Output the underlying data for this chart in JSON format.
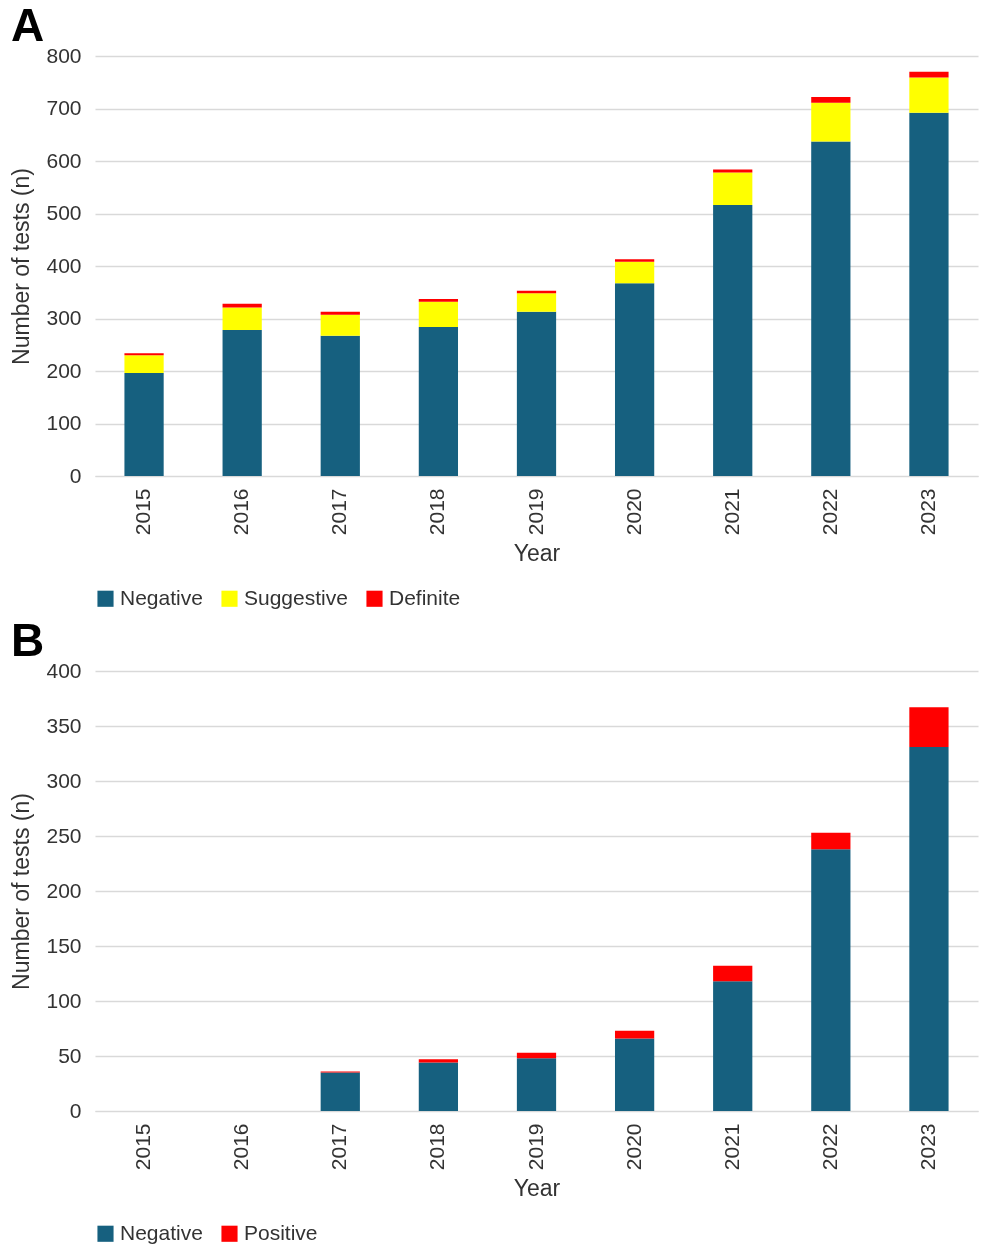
{
  "chart_data": [
    {
      "type": "bar",
      "title": "A",
      "xlabel": "Year",
      "ylabel": "Number of tests (n)",
      "categories": [
        "2015",
        "2016",
        "2017",
        "2018",
        "2019",
        "2020",
        "2021",
        "2022",
        "2023"
      ],
      "stacked": true,
      "ylim": [
        0,
        800
      ],
      "yticks": [
        0,
        100,
        200,
        300,
        400,
        500,
        600,
        700,
        800
      ],
      "grid": "y",
      "legend": "bottom",
      "series": [
        {
          "name": "Negative",
          "color": "#16607f",
          "values": [
            196,
            278,
            267,
            284,
            313,
            367,
            516,
            637,
            692
          ]
        },
        {
          "name": "Suggestive",
          "color": "#ffff00",
          "values": [
            34,
            43,
            40,
            48,
            35,
            41,
            62,
            74,
            67
          ]
        },
        {
          "name": "Definite",
          "color": "#ff0000",
          "values": [
            4,
            7,
            6,
            5,
            5,
            5,
            6,
            11,
            11
          ]
        }
      ]
    },
    {
      "type": "bar",
      "title": "B",
      "xlabel": "Year",
      "ylabel": "Number of tests (n)",
      "categories": [
        "2015",
        "2016",
        "2017",
        "2018",
        "2019",
        "2020",
        "2021",
        "2022",
        "2023"
      ],
      "stacked": true,
      "ylim": [
        0,
        400
      ],
      "yticks": [
        0,
        50,
        100,
        150,
        200,
        250,
        300,
        350,
        400
      ],
      "grid": "y",
      "legend": "bottom",
      "series": [
        {
          "name": "Negative",
          "color": "#16607f",
          "values": [
            null,
            null,
            35,
            44,
            48,
            66,
            118,
            238,
            331
          ]
        },
        {
          "name": "Positive",
          "color": "#ff0000",
          "values": [
            null,
            null,
            1,
            3,
            5,
            7,
            14,
            15,
            36
          ]
        }
      ]
    }
  ]
}
